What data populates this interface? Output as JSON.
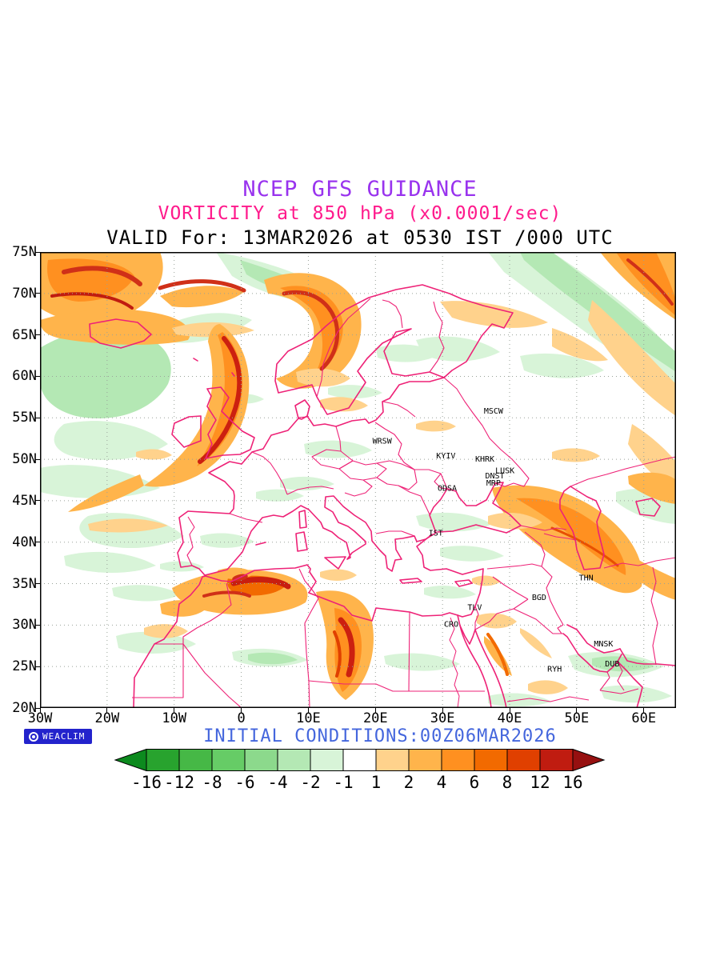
{
  "header": {
    "line1": "NCEP GFS GUIDANCE",
    "line2": "VORTICITY at 850 hPa (x0.0001/sec)",
    "line3": "VALID For: 13MAR2026 at 0530 IST /000 UTC",
    "line1_color": "#9933ee",
    "line2_color": "#ff1a8c"
  },
  "map": {
    "extent": {
      "lon_min": -30,
      "lon_max": 64.8,
      "lat_min": 20,
      "lat_max": 75
    },
    "lat_ticks": [
      {
        "label": "75N",
        "value": 75
      },
      {
        "label": "70N",
        "value": 70
      },
      {
        "label": "65N",
        "value": 65
      },
      {
        "label": "60N",
        "value": 60
      },
      {
        "label": "55N",
        "value": 55
      },
      {
        "label": "50N",
        "value": 50
      },
      {
        "label": "45N",
        "value": 45
      },
      {
        "label": "40N",
        "value": 40
      },
      {
        "label": "35N",
        "value": 35
      },
      {
        "label": "30N",
        "value": 30
      },
      {
        "label": "25N",
        "value": 25
      },
      {
        "label": "20N",
        "value": 20
      }
    ],
    "lon_ticks": [
      {
        "label": "30W",
        "value": -30
      },
      {
        "label": "20W",
        "value": -20
      },
      {
        "label": "10W",
        "value": -10
      },
      {
        "label": "0",
        "value": 0
      },
      {
        "label": "10E",
        "value": 10
      },
      {
        "label": "20E",
        "value": 20
      },
      {
        "label": "30E",
        "value": 30
      },
      {
        "label": "40E",
        "value": 40
      },
      {
        "label": "50E",
        "value": 50
      },
      {
        "label": "60E",
        "value": 60
      }
    ],
    "cities": [
      {
        "label": "MSCW",
        "lon": 37.6,
        "lat": 55.8
      },
      {
        "label": "WRSW",
        "lon": 21.0,
        "lat": 52.2
      },
      {
        "label": "KYIV",
        "lon": 30.5,
        "lat": 50.4
      },
      {
        "label": "KHRK",
        "lon": 36.3,
        "lat": 50.0
      },
      {
        "label": "LUSK",
        "lon": 39.3,
        "lat": 48.6
      },
      {
        "label": "DNST",
        "lon": 37.8,
        "lat": 48.0
      },
      {
        "label": "MRP",
        "lon": 37.6,
        "lat": 47.1
      },
      {
        "label": "ODSA",
        "lon": 30.7,
        "lat": 46.5
      },
      {
        "label": "IST",
        "lon": 29.0,
        "lat": 41.1
      },
      {
        "label": "THN",
        "lon": 51.4,
        "lat": 35.7
      },
      {
        "label": "BGD",
        "lon": 44.4,
        "lat": 33.3
      },
      {
        "label": "TLV",
        "lon": 34.8,
        "lat": 32.1
      },
      {
        "label": "CRO",
        "lon": 31.3,
        "lat": 30.1
      },
      {
        "label": "MNSK",
        "lon": 54.0,
        "lat": 27.7
      },
      {
        "label": "RYH",
        "lon": 46.7,
        "lat": 24.7
      },
      {
        "label": "DUB",
        "lon": 55.3,
        "lat": 25.3
      }
    ],
    "outline_color": "#ee2277",
    "grid_color": "#9aa29a"
  },
  "footer": {
    "logo_text": "WEACLIM",
    "initial_conditions": "INITIAL CONDITIONS:00Z06MAR2026",
    "initial_conditions_color": "#4466dd"
  },
  "colorbar": {
    "labels": [
      "-16",
      "-12",
      "-8",
      "-6",
      "-4",
      "-2",
      "-1",
      "1",
      "2",
      "4",
      "6",
      "8",
      "12",
      "16"
    ],
    "segments": [
      "#0c8a1e",
      "#28a32e",
      "#46b846",
      "#66cc66",
      "#8cd98c",
      "#b4e8b4",
      "#d8f4d8",
      "#ffffff",
      "#ffd28c",
      "#ffb44b",
      "#ff9020",
      "#f26a00",
      "#e04000",
      "#c01c10",
      "#961010"
    ]
  },
  "chart_data": {
    "type": "heatmap",
    "title": "NCEP GFS GUIDANCE",
    "subtitle": "VORTICITY at 850 hPa (x0.0001/sec)",
    "valid_label": "VALID For: 13MAR2026 at 0530 IST /000 UTC",
    "initial_conditions": "00Z06MAR2026",
    "model": "NCEP GFS",
    "variable": "relative vorticity",
    "level": "850 hPa",
    "units": "x0.0001/sec",
    "lon_range": [
      -30,
      64.8
    ],
    "lat_range": [
      20,
      75
    ],
    "x_tick_labels": [
      "30W",
      "20W",
      "10W",
      "0",
      "10E",
      "20E",
      "30E",
      "40E",
      "50E",
      "60E"
    ],
    "y_tick_labels": [
      "75N",
      "70N",
      "65N",
      "60N",
      "55N",
      "50N",
      "45N",
      "40N",
      "35N",
      "30N",
      "25N",
      "20N"
    ],
    "contour_levels": [
      -16,
      -12,
      -8,
      -6,
      -4,
      -2,
      -1,
      1,
      2,
      4,
      6,
      8,
      12,
      16
    ],
    "colorbar_colors": [
      "#0c8a1e",
      "#28a32e",
      "#46b846",
      "#66cc66",
      "#8cd98c",
      "#b4e8b4",
      "#d8f4d8",
      "#ffffff",
      "#ffd28c",
      "#ffb44b",
      "#ff9020",
      "#f26a00",
      "#e04000",
      "#c01c10",
      "#961010"
    ],
    "station_labels": [
      "MSCW",
      "WRSW",
      "KYIV",
      "KHRK",
      "LUSK",
      "DNST",
      "MRP",
      "ODSA",
      "IST",
      "THN",
      "BGD",
      "TLV",
      "CRO",
      "MNSK",
      "RYH",
      "DUB"
    ],
    "features": {
      "positive_vorticity_regions": [
        "strong swirls over NE Atlantic / Greenland Sea (30W-0, 60-75N) with cores above +8",
        "arc through Scotland curving SW into the Atlantic",
        "comma over the Norwegian Sea and southern Norway",
        "band across Barents / NW Russia along the top-right edge",
        "broad Caucasus-Zagros band (35-55E, 33-45N)",
        "Atlas Mountain cores near +8 to +12 (10W-5E, 30-36N)",
        "large comma over Libya with cores above +8",
        "streaks along the Red Sea / Egypt"
      ],
      "negative_vorticity_regions": [
        "weak negative (-1 to -4) patches over the mid-Atlantic, central Europe, Sahara fringe, Arabia and east of the Caspian"
      ]
    }
  }
}
